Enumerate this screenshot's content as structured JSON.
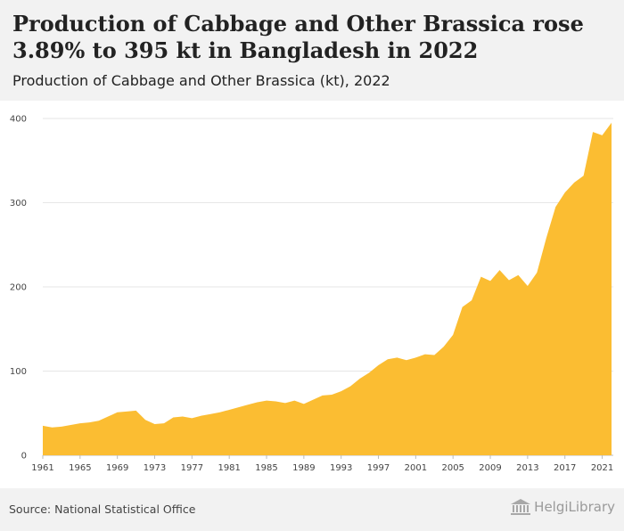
{
  "header": {
    "title": "Production of Cabbage and Other Brassica rose 3.89% to 395 kt in Bangladesh in 2022",
    "subtitle": "Production of Cabbage and Other Brassica (kt), 2022"
  },
  "footer": {
    "source": "Source: National Statistical Office",
    "logo_text": "HelgiLibrary"
  },
  "colors": {
    "area_fill": "#fbbd32",
    "gridline": "#e6e6e6",
    "background_band": "#f2f2f2"
  },
  "chart_data": {
    "type": "area",
    "title": "Production of Cabbage and Other Brassica rose 3.89% to 395 kt in Bangladesh in 2022",
    "subtitle": "Production of Cabbage and Other Brassica (kt), 2022",
    "xlabel": "",
    "ylabel": "",
    "x": [
      1961,
      1962,
      1963,
      1964,
      1965,
      1966,
      1967,
      1968,
      1969,
      1970,
      1971,
      1972,
      1973,
      1974,
      1975,
      1976,
      1977,
      1978,
      1979,
      1980,
      1981,
      1982,
      1983,
      1984,
      1985,
      1986,
      1987,
      1988,
      1989,
      1990,
      1991,
      1992,
      1993,
      1994,
      1995,
      1996,
      1997,
      1998,
      1999,
      2000,
      2001,
      2002,
      2003,
      2004,
      2005,
      2006,
      2007,
      2008,
      2009,
      2010,
      2011,
      2012,
      2013,
      2014,
      2015,
      2016,
      2017,
      2018,
      2019,
      2020,
      2021,
      2022
    ],
    "values": [
      35,
      33,
      34,
      36,
      38,
      39,
      41,
      46,
      51,
      52,
      53,
      42,
      37,
      38,
      45,
      46,
      44,
      47,
      49,
      51,
      54,
      57,
      60,
      63,
      65,
      64,
      62,
      65,
      61,
      66,
      71,
      72,
      76,
      82,
      91,
      98,
      107,
      114,
      116,
      113,
      116,
      120,
      119,
      129,
      143,
      176,
      184,
      212,
      207,
      220,
      208,
      214,
      201,
      217,
      258,
      295,
      312,
      324,
      332,
      384,
      380,
      395
    ],
    "x_ticks": [
      1961,
      1965,
      1969,
      1973,
      1977,
      1981,
      1985,
      1989,
      1993,
      1997,
      2001,
      2005,
      2009,
      2013,
      2017,
      2021
    ],
    "y_ticks": [
      0,
      100,
      200,
      300,
      400
    ],
    "xlim": [
      1961,
      2022
    ],
    "ylim": [
      0,
      400
    ],
    "grid": true,
    "legend": "none",
    "series": [
      {
        "values_ref": "values"
      }
    ]
  }
}
